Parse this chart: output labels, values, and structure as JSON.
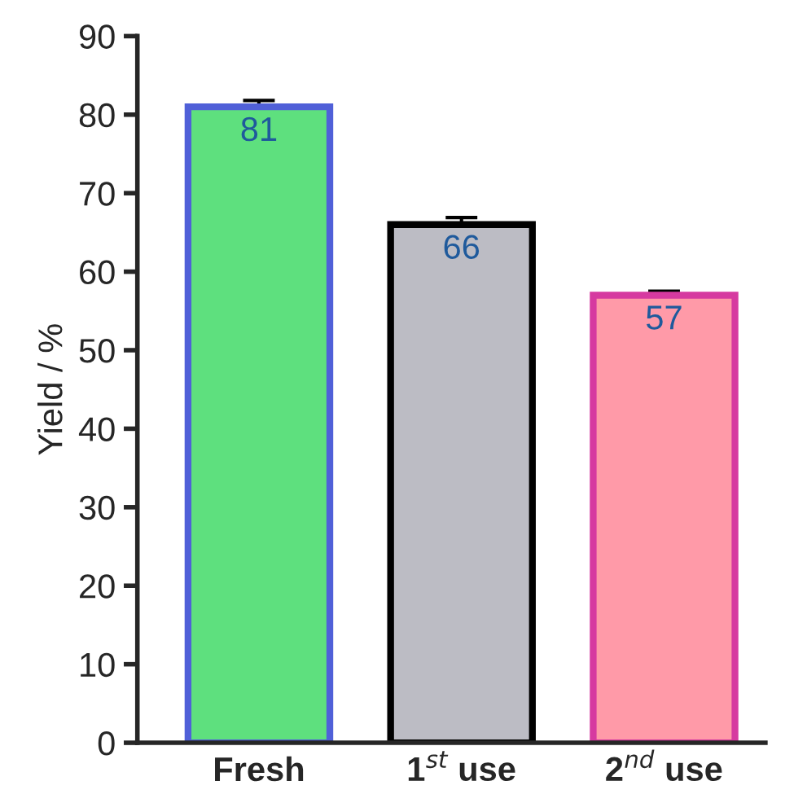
{
  "chart_data": {
    "type": "bar",
    "ylabel": "Yield / %",
    "categories": [
      "Fresh",
      "1$^{st}$ use",
      "2$^{nd}$ use"
    ],
    "values": [
      81,
      66,
      57
    ],
    "errors": [
      0.8,
      0.9,
      0.5
    ],
    "colors": [
      "#5ee07e",
      "#bcbcc4",
      "#ff9aa8"
    ],
    "ylim": [
      0,
      90
    ],
    "yticks": [
      0,
      10,
      20,
      30,
      40,
      50,
      60,
      70,
      80,
      90
    ],
    "data_labels": true,
    "grid": false,
    "legend": false
  }
}
